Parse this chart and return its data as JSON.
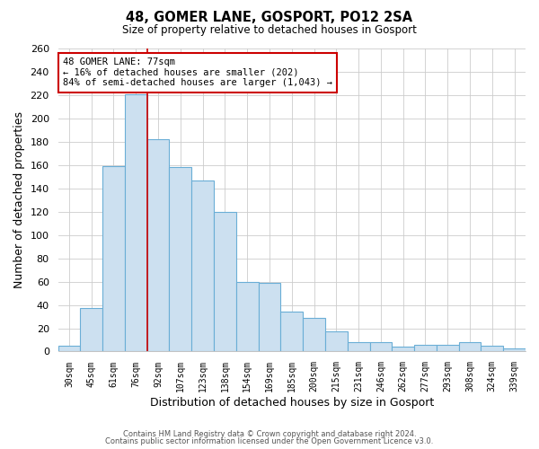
{
  "title": "48, GOMER LANE, GOSPORT, PO12 2SA",
  "subtitle": "Size of property relative to detached houses in Gosport",
  "xlabel": "Distribution of detached houses by size in Gosport",
  "ylabel": "Number of detached properties",
  "bar_labels": [
    "30sqm",
    "45sqm",
    "61sqm",
    "76sqm",
    "92sqm",
    "107sqm",
    "123sqm",
    "138sqm",
    "154sqm",
    "169sqm",
    "185sqm",
    "200sqm",
    "215sqm",
    "231sqm",
    "246sqm",
    "262sqm",
    "277sqm",
    "293sqm",
    "308sqm",
    "324sqm",
    "339sqm"
  ],
  "bar_values": [
    5,
    37,
    159,
    221,
    182,
    158,
    147,
    120,
    60,
    59,
    34,
    29,
    17,
    8,
    8,
    4,
    6,
    6,
    8,
    5,
    3
  ],
  "bar_color": "#cce0f0",
  "bar_edge_color": "#6aaed6",
  "annotation_title": "48 GOMER LANE: 77sqm",
  "annotation_line1": "← 16% of detached houses are smaller (202)",
  "annotation_line2": "84% of semi-detached houses are larger (1,043) →",
  "annotation_box_edge": "#cc0000",
  "vline_color": "#cc0000",
  "ylim": [
    0,
    260
  ],
  "yticks": [
    0,
    20,
    40,
    60,
    80,
    100,
    120,
    140,
    160,
    180,
    200,
    220,
    240,
    260
  ],
  "footer_line1": "Contains HM Land Registry data © Crown copyright and database right 2024.",
  "footer_line2": "Contains public sector information licensed under the Open Government Licence v3.0.",
  "bg_color": "#ffffff",
  "plot_bg_color": "#ffffff",
  "grid_color": "#cccccc"
}
